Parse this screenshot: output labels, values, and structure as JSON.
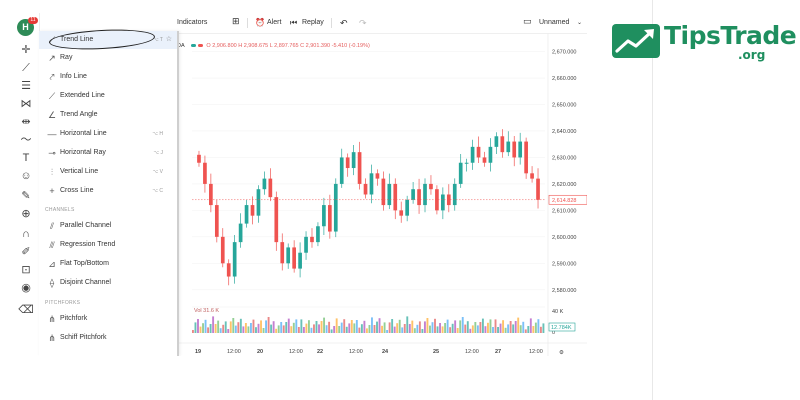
{
  "logo": {
    "name": "TipsTrade",
    "suffix": ".org",
    "color": "#1f8f5f"
  },
  "toolbar": {
    "indicators": "Indicators",
    "alert": "Alert",
    "replay": "Replay",
    "layout_name": "Unnamed"
  },
  "avatar": {
    "initial": "H",
    "badge": "11"
  },
  "symbol_info": {
    "symbol": "DA",
    "open": "O 2,906.800",
    "high": "H 2,908.675",
    "low": "L 2,897.765",
    "close": "C 2,901.390",
    "change": "-5.410 (-0.19%)"
  },
  "menu": {
    "items": [
      {
        "label": "Trend Line",
        "icon": "trend-line-icon",
        "shortcut": "⌥ T",
        "selected": true
      },
      {
        "label": "Ray",
        "icon": "ray-icon",
        "shortcut": ""
      },
      {
        "label": "Info Line",
        "icon": "info-line-icon",
        "shortcut": ""
      },
      {
        "label": "Extended Line",
        "icon": "extended-line-icon",
        "shortcut": ""
      },
      {
        "label": "Trend Angle",
        "icon": "trend-angle-icon",
        "shortcut": ""
      },
      {
        "label": "Horizontal Line",
        "icon": "horizontal-line-icon",
        "shortcut": "⌥ H"
      },
      {
        "label": "Horizontal Ray",
        "icon": "horizontal-ray-icon",
        "shortcut": "⌥ J"
      },
      {
        "label": "Vertical Line",
        "icon": "vertical-line-icon",
        "shortcut": "⌥ V"
      },
      {
        "label": "Cross Line",
        "icon": "cross-line-icon",
        "shortcut": "⌥ C"
      }
    ],
    "channels_header": "CHANNELS",
    "channels": [
      {
        "label": "Parallel Channel",
        "icon": "parallel-channel-icon"
      },
      {
        "label": "Regression Trend",
        "icon": "regression-trend-icon"
      },
      {
        "label": "Flat Top/Bottom",
        "icon": "flat-top-bottom-icon"
      },
      {
        "label": "Disjoint Channel",
        "icon": "disjoint-channel-icon"
      }
    ],
    "pitchforks_header": "PITCHFORKS",
    "pitchforks": [
      {
        "label": "Pitchfork",
        "icon": "pitchfork-icon"
      },
      {
        "label": "Schiff Pitchfork",
        "icon": "schiff-pitchfork-icon"
      }
    ]
  },
  "chart_data": {
    "type": "candlestick",
    "y_ticks": [
      2580,
      2590,
      2600,
      2610,
      2620,
      2630,
      2640,
      2650,
      2660,
      2670
    ],
    "y_tick_labels": [
      "2,580.000",
      "2,590.000",
      "2,600.000",
      "2,610.000",
      "2,620.000",
      "2,630.000",
      "2,640.000",
      "2,650.000",
      "2,660.000",
      "2,670.000"
    ],
    "ylim": [
      2575,
      2674
    ],
    "x_tick_labels": [
      "19",
      "12:00",
      "20",
      "12:00",
      "22",
      "12:00",
      "24",
      "25",
      "12:00",
      "27",
      "12:00"
    ],
    "last_price_label": "2,614.828",
    "volume_label": "40 K",
    "volume_zero_label": "0",
    "volume_last_label": "12.784K",
    "volume_header": "Vol 31.6 K",
    "up_color": "#26a69a",
    "down_color": "#ef5350",
    "closes": [
      2628,
      2620,
      2612,
      2600,
      2590,
      2585,
      2598,
      2605,
      2612,
      2608,
      2618,
      2622,
      2615,
      2598,
      2590,
      2596,
      2588,
      2594,
      2600,
      2598,
      2604,
      2612,
      2602,
      2620,
      2630,
      2626,
      2632,
      2620,
      2616,
      2624,
      2622,
      2612,
      2620,
      2610,
      2608,
      2614,
      2618,
      2612,
      2620,
      2618,
      2610,
      2616,
      2612,
      2620,
      2628,
      2628,
      2634,
      2630,
      2628,
      2634,
      2638,
      2632,
      2636,
      2630,
      2636,
      2624,
      2622,
      2614
    ]
  }
}
